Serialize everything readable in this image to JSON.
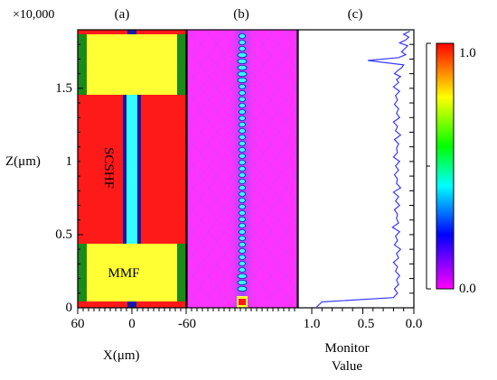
{
  "figure": {
    "z_multiplier": "×10,000",
    "panel_labels": [
      "(a)",
      "(b)",
      "(c)"
    ],
    "colors": {
      "red": "#ff1a1a",
      "yellow": "#ffff33",
      "green": "#1a8a1a",
      "cyan": "#33ffff",
      "blue": "#1a1aa0",
      "magenta": "#ff33ff",
      "purple": "#9b30ff",
      "curve": "#3a3aff"
    }
  },
  "panel_a": {
    "y_axis": {
      "label": "Z(μm)",
      "ticks": [
        "0",
        "0.5",
        "1",
        "1.5"
      ]
    },
    "x_axis": {
      "label": "X(μm)",
      "ticks": [
        "60",
        "0",
        "-60"
      ]
    },
    "region_labels": {
      "mmf": "MMF",
      "sc_shf": "SCSHF"
    }
  },
  "panel_c": {
    "x_axis": {
      "ticks": [
        "1.0",
        "0.5",
        "0.0"
      ],
      "label_line1": "Monitor",
      "label_line2": "Value"
    }
  },
  "colorbar": {
    "top_label": "1.0",
    "bottom_label": "0.0"
  },
  "chart_data": {
    "type": "line",
    "title": "",
    "xlabel": "Monitor Value",
    "ylabel": "Z(μm) ×10,000",
    "xlim": [
      1.0,
      0.0
    ],
    "ylim": [
      0,
      1.9
    ],
    "x": [
      0.96,
      0.9,
      0.2,
      0.16,
      0.19,
      0.15,
      0.17,
      0.14,
      0.18,
      0.16,
      0.2,
      0.15,
      0.17,
      0.13,
      0.19,
      0.16,
      0.18,
      0.14,
      0.21,
      0.15,
      0.17,
      0.16,
      0.19,
      0.14,
      0.18,
      0.15,
      0.2,
      0.13,
      0.17,
      0.16,
      0.19,
      0.15,
      0.18,
      0.14,
      0.2,
      0.16,
      0.17,
      0.15,
      0.19,
      0.13,
      0.18,
      0.16,
      0.2,
      0.14,
      0.17,
      0.15,
      0.19,
      0.16,
      0.18,
      0.14,
      0.2,
      0.15,
      0.17,
      0.13,
      0.19,
      0.16,
      0.12,
      0.1,
      0.45,
      0.15,
      0.08,
      0.12,
      0.09,
      0.06,
      0.14,
      0.08,
      0.05,
      0.1,
      0.04
    ],
    "y": [
      0.0,
      0.04,
      0.07,
      0.1,
      0.13,
      0.16,
      0.19,
      0.22,
      0.25,
      0.28,
      0.31,
      0.34,
      0.37,
      0.4,
      0.43,
      0.46,
      0.49,
      0.52,
      0.55,
      0.58,
      0.61,
      0.64,
      0.67,
      0.7,
      0.73,
      0.76,
      0.79,
      0.82,
      0.85,
      0.88,
      0.91,
      0.94,
      0.97,
      1.0,
      1.03,
      1.06,
      1.09,
      1.12,
      1.15,
      1.18,
      1.21,
      1.24,
      1.27,
      1.3,
      1.33,
      1.36,
      1.39,
      1.42,
      1.45,
      1.48,
      1.51,
      1.54,
      1.56,
      1.58,
      1.6,
      1.62,
      1.64,
      1.66,
      1.69,
      1.71,
      1.73,
      1.75,
      1.77,
      1.79,
      1.81,
      1.83,
      1.85,
      1.87,
      1.89
    ]
  }
}
